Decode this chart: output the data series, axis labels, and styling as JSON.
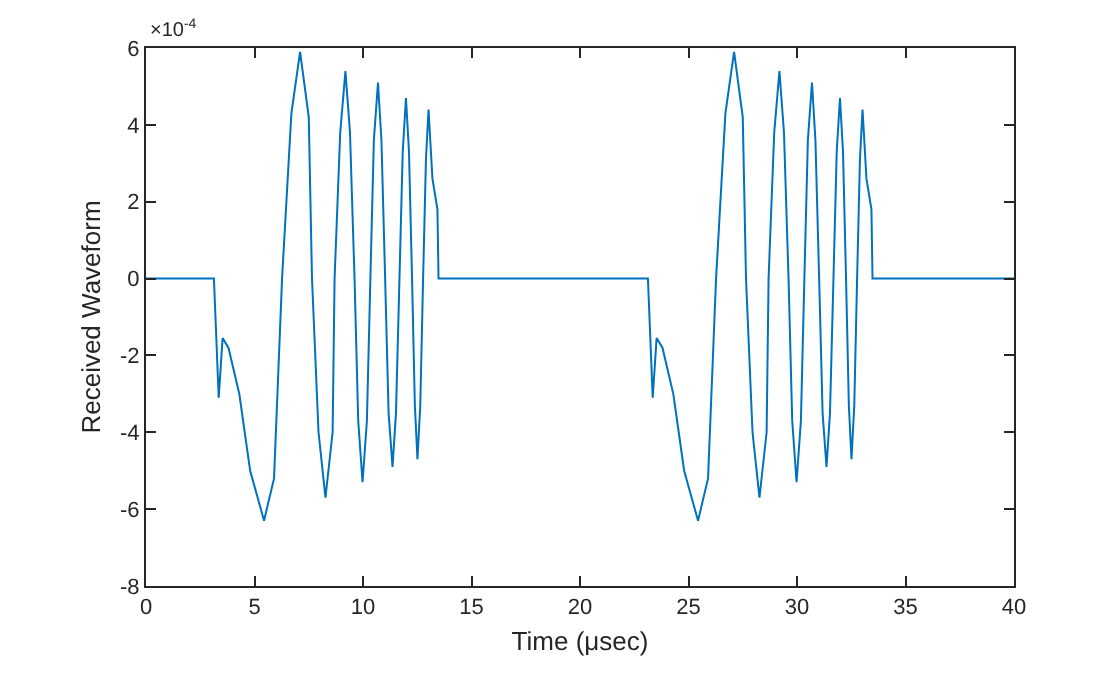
{
  "chart_data": {
    "type": "line",
    "xlabel": "Time (μsec)",
    "ylabel": "Received Waveform",
    "annotations": [
      "×10$^{-4}$"
    ],
    "x": [
      0,
      3.13,
      3.35,
      3.53,
      3.8,
      4.3,
      4.8,
      5.44,
      5.9,
      6.27,
      6.7,
      7.1,
      7.5,
      7.65,
      7.95,
      8.27,
      8.6,
      8.69,
      8.95,
      9.19,
      9.4,
      9.61,
      9.78,
      9.98,
      10.18,
      10.34,
      10.5,
      10.69,
      10.85,
      11.02,
      11.18,
      11.36,
      11.52,
      11.68,
      11.83,
      11.98,
      12.12,
      12.26,
      12.39,
      12.51,
      12.64,
      12.77,
      12.9,
      13.02,
      13.2,
      13.43,
      13.48,
      23.13,
      23.35,
      23.53,
      23.8,
      24.3,
      24.8,
      25.44,
      25.9,
      26.27,
      26.7,
      27.1,
      27.5,
      27.65,
      27.95,
      28.27,
      28.6,
      28.69,
      28.95,
      29.19,
      29.4,
      29.61,
      29.78,
      29.98,
      30.18,
      30.34,
      30.5,
      30.69,
      30.85,
      31.02,
      31.18,
      31.36,
      31.52,
      31.68,
      31.83,
      31.98,
      32.12,
      32.26,
      32.39,
      32.51,
      32.64,
      32.77,
      32.9,
      33.02,
      33.2,
      33.43,
      33.48,
      40
    ],
    "series": [
      {
        "color": "#0072bd",
        "values": [
          0,
          0,
          -3.1,
          -1.55,
          -1.8,
          -3.0,
          -5.0,
          -6.3,
          -5.2,
          0,
          4.3,
          5.9,
          4.2,
          0,
          -4.0,
          -5.7,
          -4.0,
          0,
          3.8,
          5.4,
          3.8,
          0,
          -3.7,
          -5.3,
          -3.7,
          0,
          3.6,
          5.1,
          3.6,
          0,
          -3.5,
          -4.9,
          -3.5,
          0,
          3.3,
          4.7,
          3.3,
          0,
          -3.3,
          -4.7,
          -3.3,
          0,
          3.1,
          4.4,
          2.6,
          1.8,
          0,
          0,
          -3.1,
          -1.55,
          -1.8,
          -3.0,
          -5.0,
          -6.3,
          -5.2,
          0,
          4.3,
          5.9,
          4.2,
          0,
          -4.0,
          -5.7,
          -4.0,
          0,
          3.8,
          5.4,
          3.8,
          0,
          -3.7,
          -5.3,
          -3.7,
          0,
          3.6,
          5.1,
          3.6,
          0,
          -3.5,
          -4.9,
          -3.5,
          0,
          3.3,
          4.7,
          3.3,
          0,
          -3.3,
          -4.7,
          -3.3,
          0,
          3.1,
          4.4,
          2.6,
          1.8,
          0,
          0
        ]
      }
    ],
    "xlim": [
      0,
      40
    ],
    "ylim": [
      -8,
      6
    ],
    "xticks": [
      0,
      5,
      10,
      15,
      20,
      25,
      30,
      35,
      40
    ],
    "yticks": [
      -8,
      -6,
      -4,
      -2,
      0,
      2,
      4,
      6
    ],
    "grid": false,
    "marker": "none",
    "line_style": "solid"
  }
}
